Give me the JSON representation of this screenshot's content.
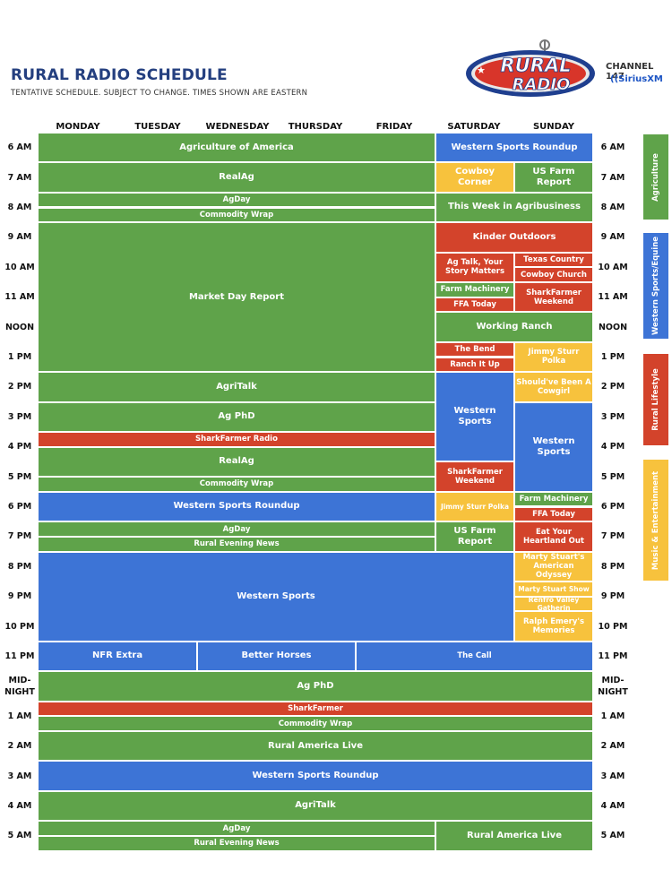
{
  "header": {
    "title": "RURAL RADIO SCHEDULE",
    "subtitle": "TENTATIVE SCHEDULE. SUBJECT TO CHANGE. TIMES SHOWN ARE EASTERN"
  },
  "logo": {
    "text_top": "RURAL",
    "text_bottom": "RADIO"
  },
  "channel": {
    "label": "CHANNEL 147",
    "brand": "SiriusXM"
  },
  "days": [
    "MONDAY",
    "TUESDAY",
    "WEDNESDAY",
    "THURSDAY",
    "FRIDAY",
    "SATURDAY",
    "SUNDAY"
  ],
  "times": [
    "6 AM",
    "7 AM",
    "8 AM",
    "9 AM",
    "10 AM",
    "11 AM",
    "NOON",
    "1 PM",
    "2 PM",
    "3 PM",
    "4 PM",
    "5 PM",
    "6 PM",
    "7 PM",
    "8 PM",
    "9 PM",
    "10 PM",
    "11 PM",
    "MID-\nNIGHT",
    "1 AM",
    "2 AM",
    "3 AM",
    "4 AM",
    "5 AM"
  ],
  "colors": {
    "agriculture": "#5fa34a",
    "western_sports_equine": "#3d74d6",
    "rural_lifestyle": "#d3432b",
    "music_entertainment": "#f7c23d"
  },
  "legend": [
    "Agriculture",
    "Western Sports/Equine",
    "Rural Lifestyle",
    "Music & Entertainment"
  ],
  "programs": [
    "Agriculture of America",
    "Western Sports Roundup",
    "RealAg",
    "Cowboy Corner",
    "US Farm Report",
    "AgDay",
    "Commodity Wrap",
    "This Week in Agribusiness",
    "Market Day Report",
    "Kinder Outdoors",
    "Ag Talk, Your Story Matters",
    "Texas Country",
    "Cowboy Church",
    "Farm Machinery",
    "SharkFarmer Weekend",
    "FFA Today",
    "Working Ranch",
    "The Bend",
    "Ranch It Up",
    "Jimmy Sturr Polka",
    "AgriTalk",
    "Should've Been A Cowgirl",
    "Ag PhD",
    "Western Sports",
    "SharkFarmer Radio",
    "SharkFarmer Weekend",
    "RealAg",
    "Commodity Wrap",
    "Western Sports",
    "Western Sports Roundup",
    "Jimmy Sturr Polka",
    "Farm Machinery",
    "FFA Today",
    "AgDay",
    "Rural Evening News",
    "US Farm Report",
    "Eat Your Heartland Out",
    "Western Sports",
    "Marty Stuart's American Odyssey",
    "Marty Stuart Show",
    "Renfro Valley Gatherin",
    "Ralph Emery's Memories",
    "NFR Extra",
    "Better Horses",
    "The Call",
    "Ag PhD",
    "SharkFarmer",
    "Commodity Wrap",
    "Rural America Live",
    "Western Sports Roundup",
    "AgriTalk",
    "AgDay",
    "Rural Evening News",
    "Rural America Live"
  ]
}
